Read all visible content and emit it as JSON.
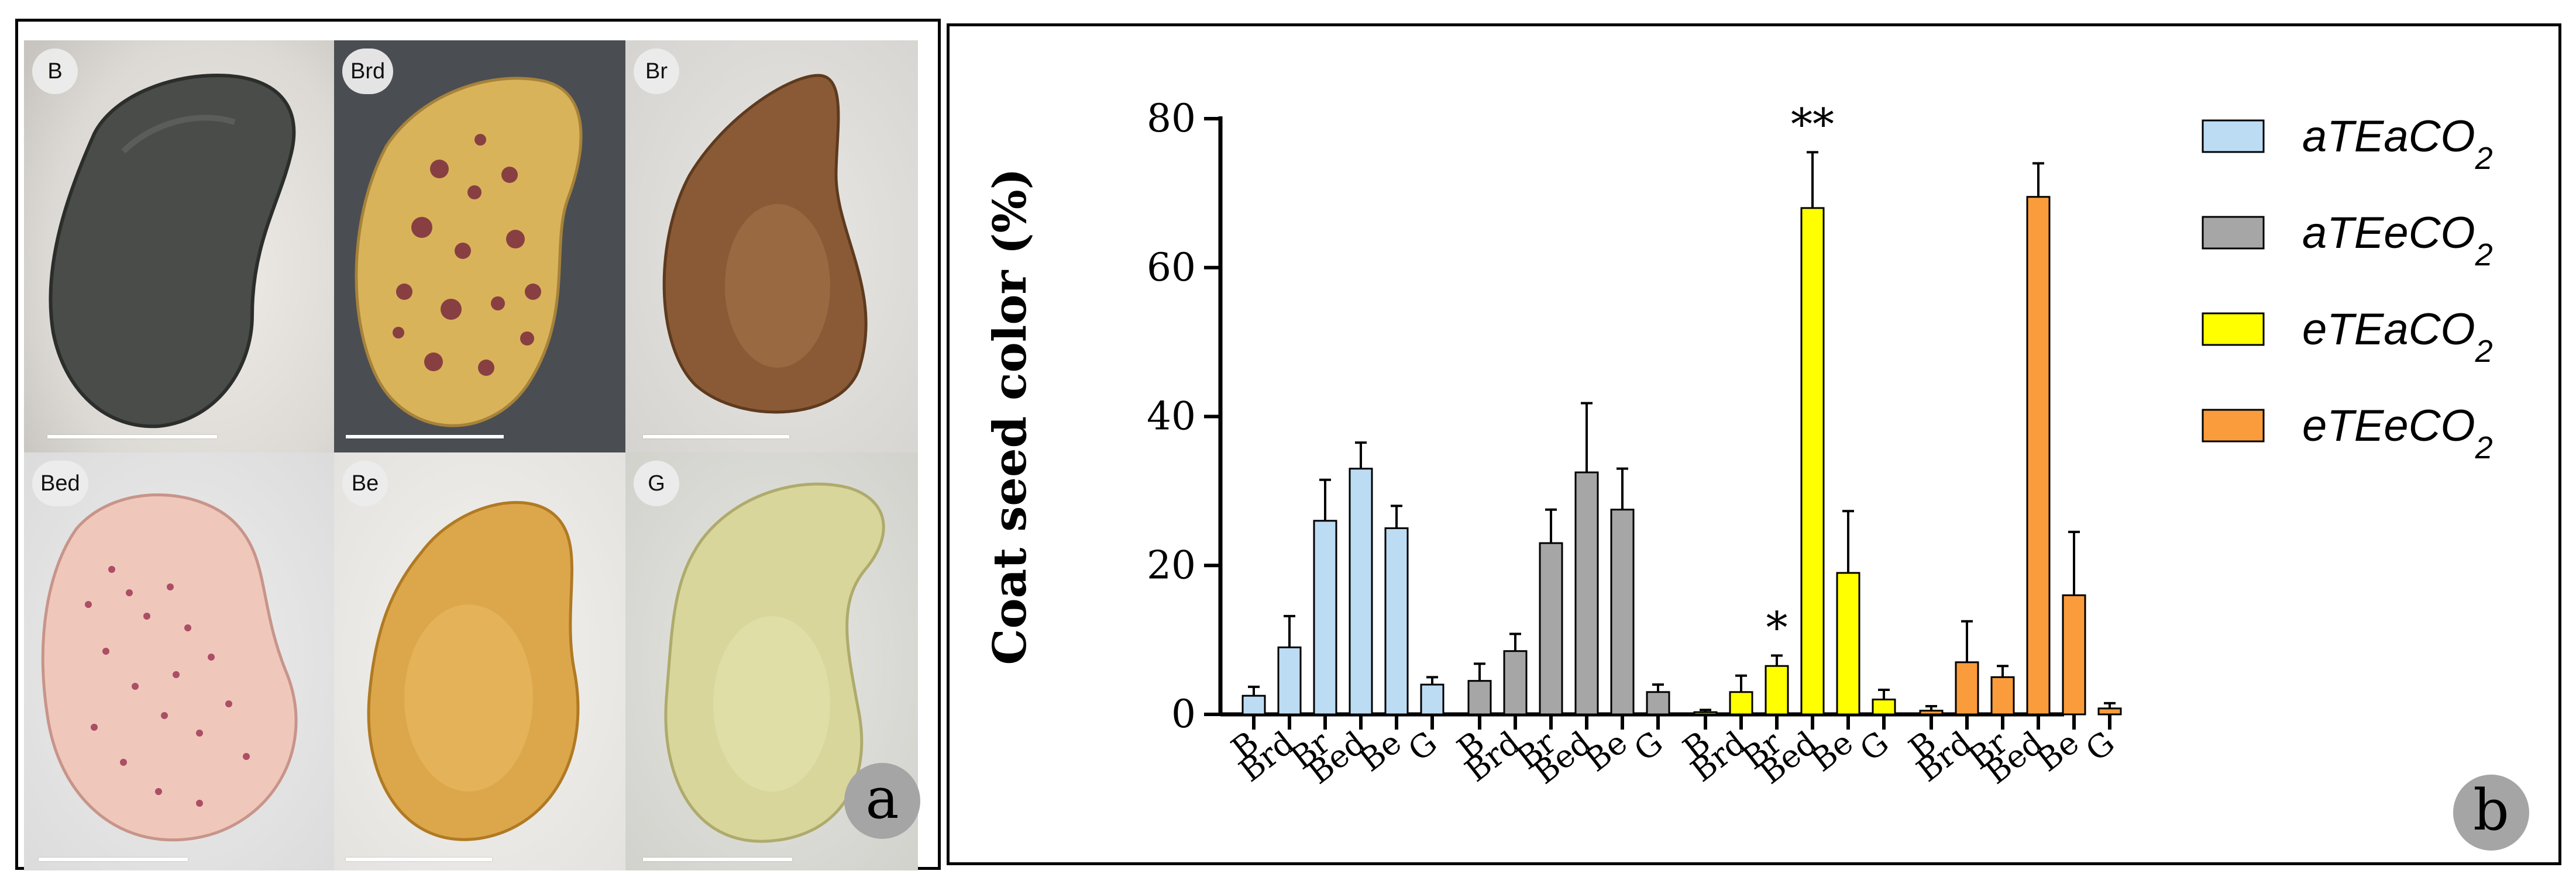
{
  "figure": {
    "panel_a": {
      "letter": "a",
      "tiles": [
        {
          "label": "B",
          "description": "black seed"
        },
        {
          "label": "Brd",
          "description": "brown-red dotted seed"
        },
        {
          "label": "Br",
          "description": "brown seed"
        },
        {
          "label": "Bed",
          "description": "beige dotted seed"
        },
        {
          "label": "Be",
          "description": "beige seed"
        },
        {
          "label": "G",
          "description": "green seed"
        }
      ]
    },
    "panel_b": {
      "letter": "b"
    }
  },
  "colors": {
    "aTEaCO2": "#bcdcf3",
    "aTEeCO2": "#a6a6a6",
    "eTEaCO2": "#ffff00",
    "eTEeCO2": "#fa9c3c",
    "axis": "#000000"
  },
  "chart_data": {
    "type": "bar",
    "title": "",
    "ylabel": "Coat seed color (%)",
    "xlabel": "",
    "ylim": [
      0,
      80
    ],
    "yticks": [
      0,
      20,
      40,
      60,
      80
    ],
    "categories": [
      "B",
      "Brd",
      "Br",
      "Bed",
      "Be",
      "G"
    ],
    "series": [
      {
        "name": "aTEaCO",
        "sub": "2",
        "color_key": "aTEaCO2",
        "values": [
          2.5,
          9,
          26,
          33,
          25,
          4
        ],
        "errors": [
          1.2,
          4.2,
          5.5,
          3.5,
          3,
          1
        ]
      },
      {
        "name": "aTEeCO",
        "sub": "2",
        "color_key": "aTEeCO2",
        "values": [
          4.5,
          8.5,
          23,
          32.5,
          27.5,
          3
        ],
        "errors": [
          2.3,
          2.3,
          4.5,
          9.3,
          5.5,
          1
        ]
      },
      {
        "name": "eTEaCO",
        "sub": "2",
        "color_key": "eTEaCO2",
        "values": [
          0.3,
          3,
          6.5,
          68,
          19,
          2
        ],
        "errors": [
          0.3,
          2.2,
          1.4,
          7.5,
          8.3,
          1.3
        ],
        "annotations": [
          {
            "category": "Br",
            "text": "*"
          },
          {
            "category": "Bed",
            "text": "**"
          }
        ]
      },
      {
        "name": "eTEeCO",
        "sub": "2",
        "color_key": "eTEeCO2",
        "values": [
          0.5,
          7,
          5,
          69.5,
          16,
          0.8
        ],
        "errors": [
          0.6,
          5.5,
          1.5,
          4.5,
          8.5,
          0.7
        ]
      }
    ],
    "legend_position": "right"
  }
}
